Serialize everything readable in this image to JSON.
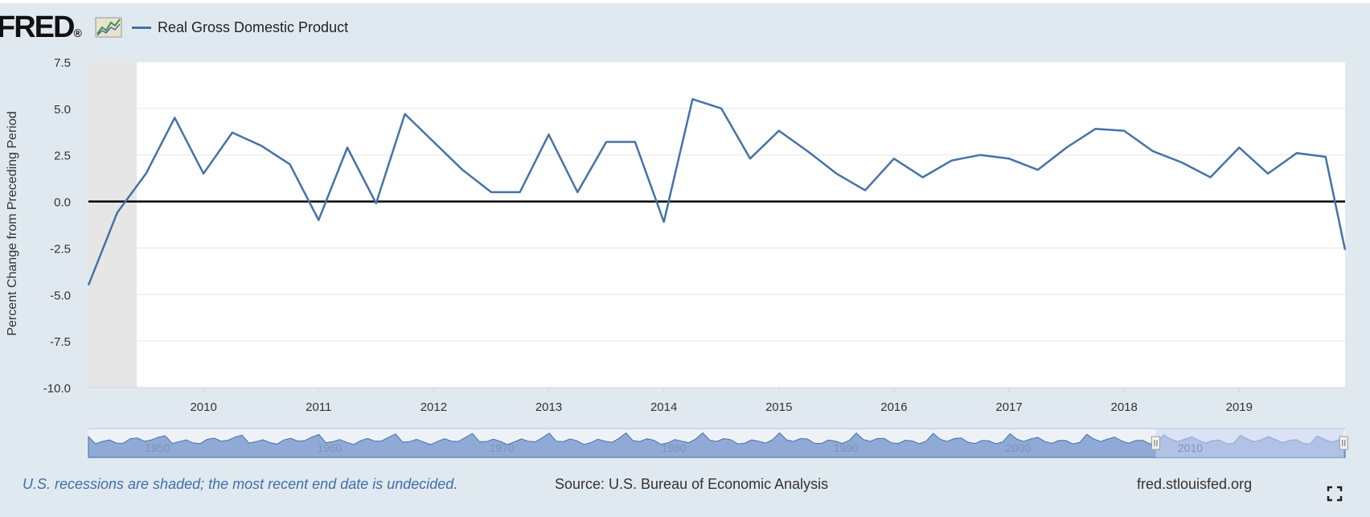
{
  "header": {
    "logo_text": "FRED",
    "logo_mark": "®",
    "logo_icon": "graph-icon",
    "legend_label": "Real Gross Domestic Product"
  },
  "colors": {
    "background": "#e1e9f0",
    "plot_bg": "#ffffff",
    "series": "#4572a7",
    "recession": "#e6e6e6",
    "navigator_fill": "#8faad6",
    "navigator_selection": "#ccd6f2",
    "note": "#3f6ea7"
  },
  "chart_data": {
    "type": "line",
    "title": "Real Gross Domestic Product",
    "xlabel": "",
    "ylabel": "Percent Change from Preceding Period",
    "y_ticks": [
      "7.5",
      "5.0",
      "2.5",
      "0.0",
      "-2.5",
      "-5.0",
      "-7.5",
      "-10.0"
    ],
    "ylim": [
      -10,
      7.5
    ],
    "x_ticks": [
      "2010",
      "2011",
      "2012",
      "2013",
      "2014",
      "2015",
      "2016",
      "2017",
      "2018",
      "2019"
    ],
    "xlim": [
      2009.0,
      2019.92
    ],
    "grid": true,
    "zero_line": true,
    "recession_band": [
      2009.0,
      2009.42
    ],
    "series": [
      {
        "name": "Real Gross Domestic Product",
        "x": [
          2009.0,
          2009.25,
          2009.5,
          2009.75,
          2010.0,
          2010.25,
          2010.5,
          2010.75,
          2011.0,
          2011.25,
          2011.5,
          2011.75,
          2012.0,
          2012.25,
          2012.5,
          2012.75,
          2013.0,
          2013.25,
          2013.5,
          2013.75,
          2014.0,
          2014.25,
          2014.5,
          2014.75,
          2015.0,
          2015.25,
          2015.5,
          2015.75,
          2016.0,
          2016.25,
          2016.5,
          2016.75,
          2017.0,
          2017.25,
          2017.5,
          2017.75,
          2018.0,
          2018.25,
          2018.5,
          2018.75,
          2019.0,
          2019.25,
          2019.5,
          2019.75,
          2019.92
        ],
        "values": [
          -4.5,
          -0.6,
          1.5,
          4.5,
          1.5,
          3.7,
          3.0,
          2.0,
          -1.0,
          2.9,
          -0.1,
          4.7,
          3.2,
          1.7,
          0.5,
          0.5,
          3.6,
          0.5,
          3.2,
          3.2,
          -1.1,
          5.5,
          5.0,
          2.3,
          3.8,
          2.7,
          1.5,
          0.6,
          2.3,
          1.3,
          2.2,
          2.5,
          2.3,
          1.7,
          2.9,
          3.9,
          3.8,
          2.7,
          2.1,
          1.3,
          2.9,
          1.5,
          2.6,
          2.4,
          -2.6
        ]
      }
    ],
    "navigator": {
      "ticks": [
        "1950",
        "1960",
        "1970",
        "1980",
        "1990",
        "2000",
        "2010"
      ],
      "range": [
        1947,
        2020
      ],
      "selection": [
        2009.0,
        2019.92
      ]
    }
  },
  "footer": {
    "note": "U.S. recessions are shaded; the most recent end date is undecided.",
    "source": "Source: U.S. Bureau of Economic Analysis",
    "site": "fred.stlouisfed.org",
    "fullscreen_icon": "fullscreen-icon"
  }
}
